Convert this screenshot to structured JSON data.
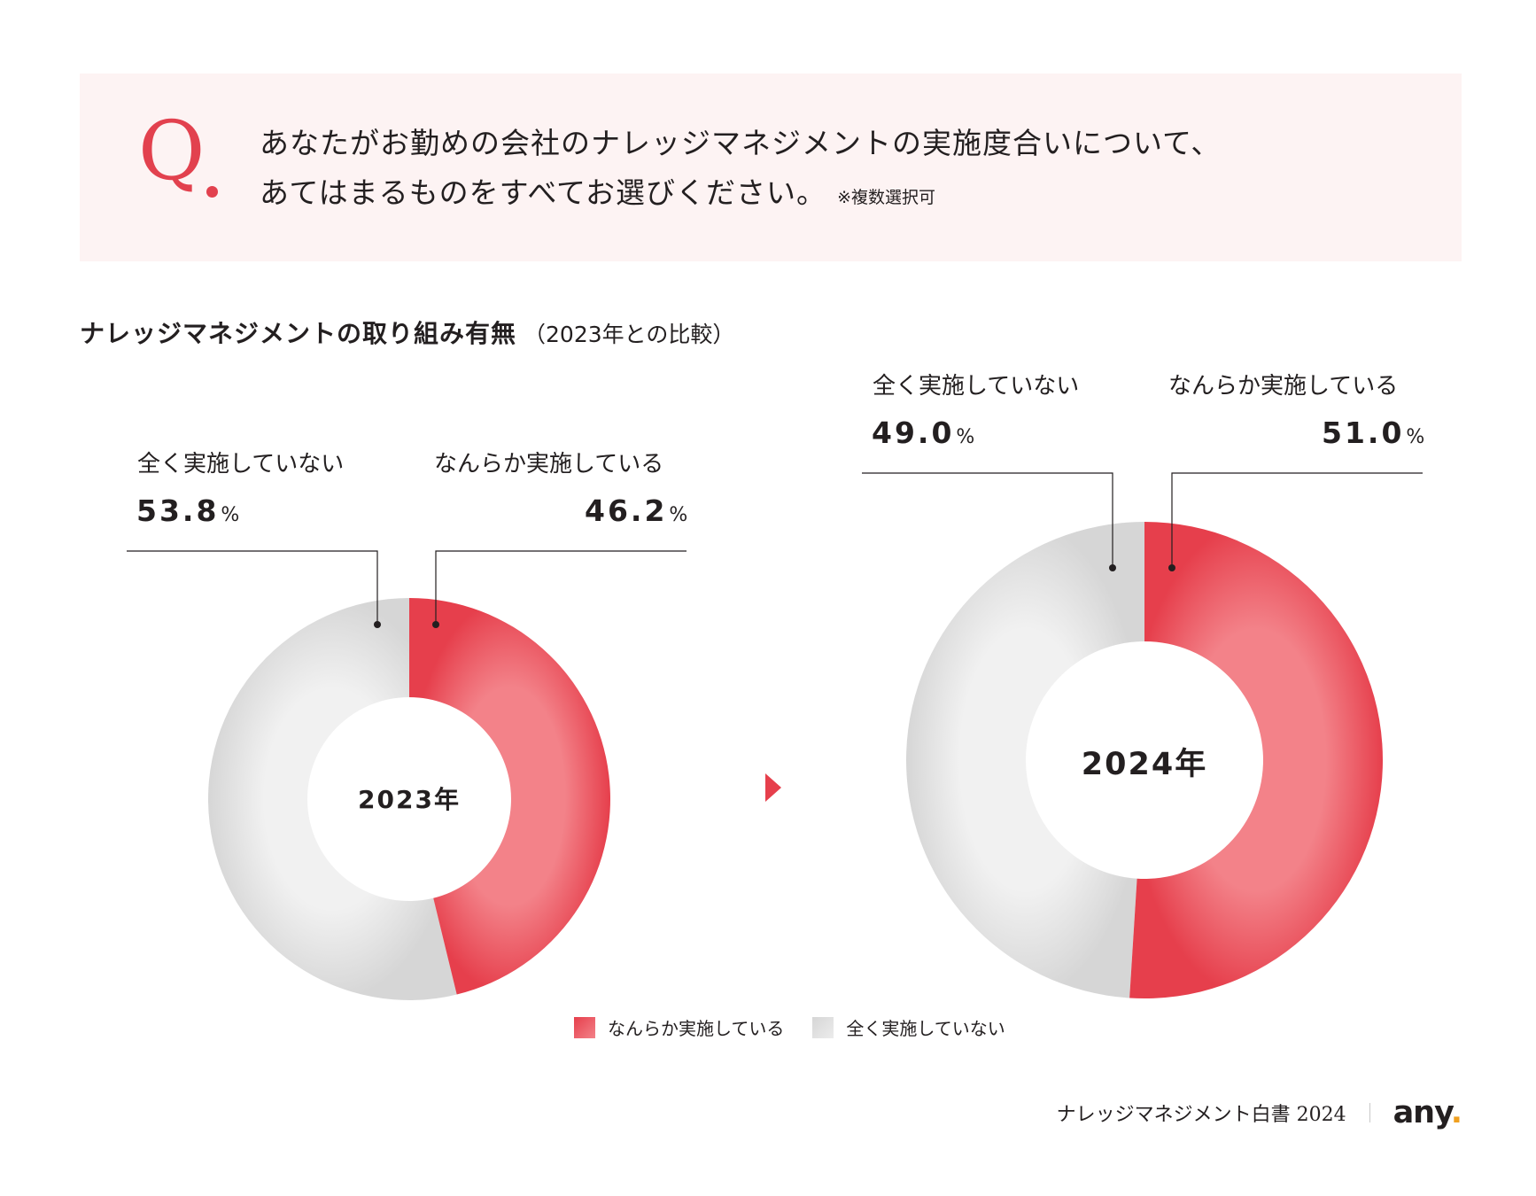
{
  "question": {
    "mark": "Q",
    "line1": "あなたがお勤めの会社のナレッジマネジメントの実施度合いについて、",
    "line2": "あてはまるものをすべてお選びください。",
    "note": "※複数選択可"
  },
  "section": {
    "title": "ナレッジマネジメントの取り組み有無",
    "subtitle": "（2023年との比較）"
  },
  "colors": {
    "implemented": "#e63f4c",
    "not_implemented": "#d6d6d6",
    "accent": "#e2414e",
    "question_bg": "#fdf3f3"
  },
  "chart_data": [
    {
      "type": "pie",
      "variant": "donut",
      "center_label": "2023年",
      "categories": [
        "全く実施していない",
        "なんらか実施している"
      ],
      "values": [
        53.8,
        46.2
      ],
      "unit": "%",
      "value_labels": [
        "53.8",
        "46.2"
      ]
    },
    {
      "type": "pie",
      "variant": "donut",
      "center_label": "2024年",
      "categories": [
        "全く実施していない",
        "なんらか実施している"
      ],
      "values": [
        49.0,
        51.0
      ],
      "unit": "%",
      "value_labels": [
        "49.0",
        "51.0"
      ]
    }
  ],
  "legend": [
    {
      "label": "なんらか実施している",
      "color": "#e63f4c"
    },
    {
      "label": "全く実施していない",
      "color": "#d6d6d6"
    }
  ],
  "footer": {
    "report": "ナレッジマネジメント白書 2024",
    "logo": "any",
    "logo_dot": "."
  }
}
